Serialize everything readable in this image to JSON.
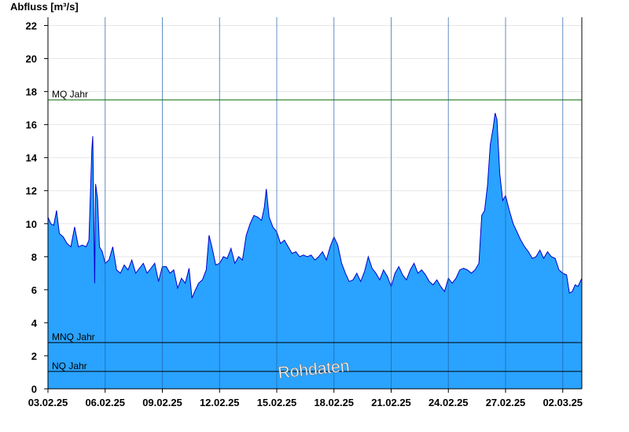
{
  "chart_data": {
    "type": "area",
    "ylabel": "Abfluss [m³/s]",
    "watermark": "Rohdaten",
    "ylim": [
      0,
      22.5
    ],
    "yticks": [
      0,
      2,
      4,
      6,
      8,
      10,
      12,
      14,
      16,
      18,
      20,
      22
    ],
    "xlim": [
      0,
      28
    ],
    "xticks": [
      {
        "x": 0,
        "label": "03.02.25"
      },
      {
        "x": 3,
        "label": "06.02.25"
      },
      {
        "x": 6,
        "label": "09.02.25"
      },
      {
        "x": 9,
        "label": "12.02.25"
      },
      {
        "x": 12,
        "label": "15.02.25"
      },
      {
        "x": 15,
        "label": "18.02.25"
      },
      {
        "x": 18,
        "label": "21.02.25"
      },
      {
        "x": 21,
        "label": "24.02.25"
      },
      {
        "x": 24,
        "label": "27.02.25"
      },
      {
        "x": 27,
        "label": "02.03.25"
      }
    ],
    "grid": true,
    "reference_lines": [
      {
        "label": "MQ Jahr",
        "value": 17.5,
        "color": "#006600"
      },
      {
        "label": "MNQ Jahr",
        "value": 2.8,
        "color": "#000000"
      },
      {
        "label": "NQ Jahr",
        "value": 1.05,
        "color": "#000000"
      }
    ],
    "colors": {
      "fill": "#29a3ff",
      "line": "#0000cc",
      "axis": "#000000",
      "grid": "#e6e6e6",
      "day_line": "#1f5fa8"
    },
    "series": [
      {
        "values": [
          [
            0.0,
            10.4
          ],
          [
            0.15,
            10.0
          ],
          [
            0.3,
            9.9
          ],
          [
            0.45,
            10.8
          ],
          [
            0.6,
            9.4
          ],
          [
            0.8,
            9.2
          ],
          [
            1.0,
            8.8
          ],
          [
            1.2,
            8.6
          ],
          [
            1.4,
            9.8
          ],
          [
            1.6,
            8.6
          ],
          [
            1.8,
            8.7
          ],
          [
            2.0,
            8.6
          ],
          [
            2.15,
            9.0
          ],
          [
            2.3,
            14.5
          ],
          [
            2.35,
            15.3
          ],
          [
            2.45,
            6.4
          ],
          [
            2.5,
            12.4
          ],
          [
            2.6,
            11.5
          ],
          [
            2.7,
            8.6
          ],
          [
            2.85,
            8.3
          ],
          [
            3.0,
            7.6
          ],
          [
            3.2,
            7.8
          ],
          [
            3.4,
            8.6
          ],
          [
            3.6,
            7.2
          ],
          [
            3.8,
            7.0
          ],
          [
            4.0,
            7.5
          ],
          [
            4.2,
            7.2
          ],
          [
            4.4,
            7.8
          ],
          [
            4.6,
            7.0
          ],
          [
            4.8,
            7.3
          ],
          [
            5.0,
            7.6
          ],
          [
            5.2,
            7.0
          ],
          [
            5.4,
            7.3
          ],
          [
            5.6,
            7.6
          ],
          [
            5.8,
            6.5
          ],
          [
            6.0,
            7.4
          ],
          [
            6.2,
            7.4
          ],
          [
            6.4,
            7.0
          ],
          [
            6.6,
            7.2
          ],
          [
            6.8,
            6.1
          ],
          [
            7.0,
            6.7
          ],
          [
            7.2,
            6.4
          ],
          [
            7.4,
            7.3
          ],
          [
            7.55,
            5.5
          ],
          [
            7.7,
            5.9
          ],
          [
            7.9,
            6.4
          ],
          [
            8.1,
            6.6
          ],
          [
            8.3,
            7.2
          ],
          [
            8.45,
            9.3
          ],
          [
            8.6,
            8.6
          ],
          [
            8.8,
            7.5
          ],
          [
            9.0,
            7.6
          ],
          [
            9.2,
            8.0
          ],
          [
            9.4,
            7.9
          ],
          [
            9.6,
            8.5
          ],
          [
            9.8,
            7.6
          ],
          [
            10.0,
            8.0
          ],
          [
            10.2,
            7.8
          ],
          [
            10.4,
            9.3
          ],
          [
            10.6,
            10.0
          ],
          [
            10.8,
            10.5
          ],
          [
            11.0,
            10.4
          ],
          [
            11.2,
            10.2
          ],
          [
            11.35,
            11.0
          ],
          [
            11.45,
            12.1
          ],
          [
            11.6,
            10.4
          ],
          [
            11.8,
            9.8
          ],
          [
            12.0,
            9.5
          ],
          [
            12.2,
            8.8
          ],
          [
            12.4,
            9.0
          ],
          [
            12.6,
            8.6
          ],
          [
            12.8,
            8.2
          ],
          [
            13.0,
            8.3
          ],
          [
            13.2,
            8.0
          ],
          [
            13.4,
            8.1
          ],
          [
            13.6,
            8.0
          ],
          [
            13.8,
            8.1
          ],
          [
            14.0,
            7.8
          ],
          [
            14.2,
            8.0
          ],
          [
            14.4,
            8.3
          ],
          [
            14.6,
            7.8
          ],
          [
            14.8,
            8.6
          ],
          [
            15.0,
            9.2
          ],
          [
            15.2,
            8.7
          ],
          [
            15.4,
            7.6
          ],
          [
            15.6,
            7.0
          ],
          [
            15.8,
            6.5
          ],
          [
            16.0,
            6.6
          ],
          [
            16.2,
            7.0
          ],
          [
            16.4,
            6.5
          ],
          [
            16.6,
            7.1
          ],
          [
            16.8,
            8.0
          ],
          [
            17.0,
            7.3
          ],
          [
            17.2,
            7.0
          ],
          [
            17.4,
            6.6
          ],
          [
            17.6,
            7.2
          ],
          [
            17.8,
            6.8
          ],
          [
            18.0,
            6.2
          ],
          [
            18.2,
            7.0
          ],
          [
            18.4,
            7.4
          ],
          [
            18.6,
            6.9
          ],
          [
            18.8,
            6.6
          ],
          [
            19.0,
            7.2
          ],
          [
            19.2,
            7.6
          ],
          [
            19.4,
            7.0
          ],
          [
            19.6,
            7.2
          ],
          [
            19.8,
            6.9
          ],
          [
            20.0,
            6.5
          ],
          [
            20.2,
            6.3
          ],
          [
            20.4,
            6.6
          ],
          [
            20.6,
            6.2
          ],
          [
            20.8,
            5.9
          ],
          [
            21.0,
            6.7
          ],
          [
            21.2,
            6.4
          ],
          [
            21.4,
            6.7
          ],
          [
            21.6,
            7.2
          ],
          [
            21.8,
            7.3
          ],
          [
            22.0,
            7.2
          ],
          [
            22.2,
            7.0
          ],
          [
            22.4,
            7.2
          ],
          [
            22.6,
            7.6
          ],
          [
            22.75,
            10.5
          ],
          [
            22.9,
            10.8
          ],
          [
            23.05,
            12.3
          ],
          [
            23.2,
            14.8
          ],
          [
            23.35,
            15.8
          ],
          [
            23.45,
            16.7
          ],
          [
            23.55,
            16.3
          ],
          [
            23.7,
            13.0
          ],
          [
            23.85,
            11.4
          ],
          [
            24.0,
            11.7
          ],
          [
            24.2,
            10.8
          ],
          [
            24.4,
            10.0
          ],
          [
            24.6,
            9.5
          ],
          [
            24.8,
            9.0
          ],
          [
            25.0,
            8.6
          ],
          [
            25.2,
            8.3
          ],
          [
            25.4,
            7.9
          ],
          [
            25.6,
            8.0
          ],
          [
            25.8,
            8.4
          ],
          [
            26.0,
            7.9
          ],
          [
            26.2,
            8.3
          ],
          [
            26.4,
            8.0
          ],
          [
            26.6,
            7.9
          ],
          [
            26.8,
            7.2
          ],
          [
            27.0,
            7.0
          ],
          [
            27.2,
            6.9
          ],
          [
            27.35,
            5.8
          ],
          [
            27.5,
            5.9
          ],
          [
            27.65,
            6.3
          ],
          [
            27.8,
            6.2
          ],
          [
            28.0,
            6.7
          ]
        ]
      }
    ]
  }
}
